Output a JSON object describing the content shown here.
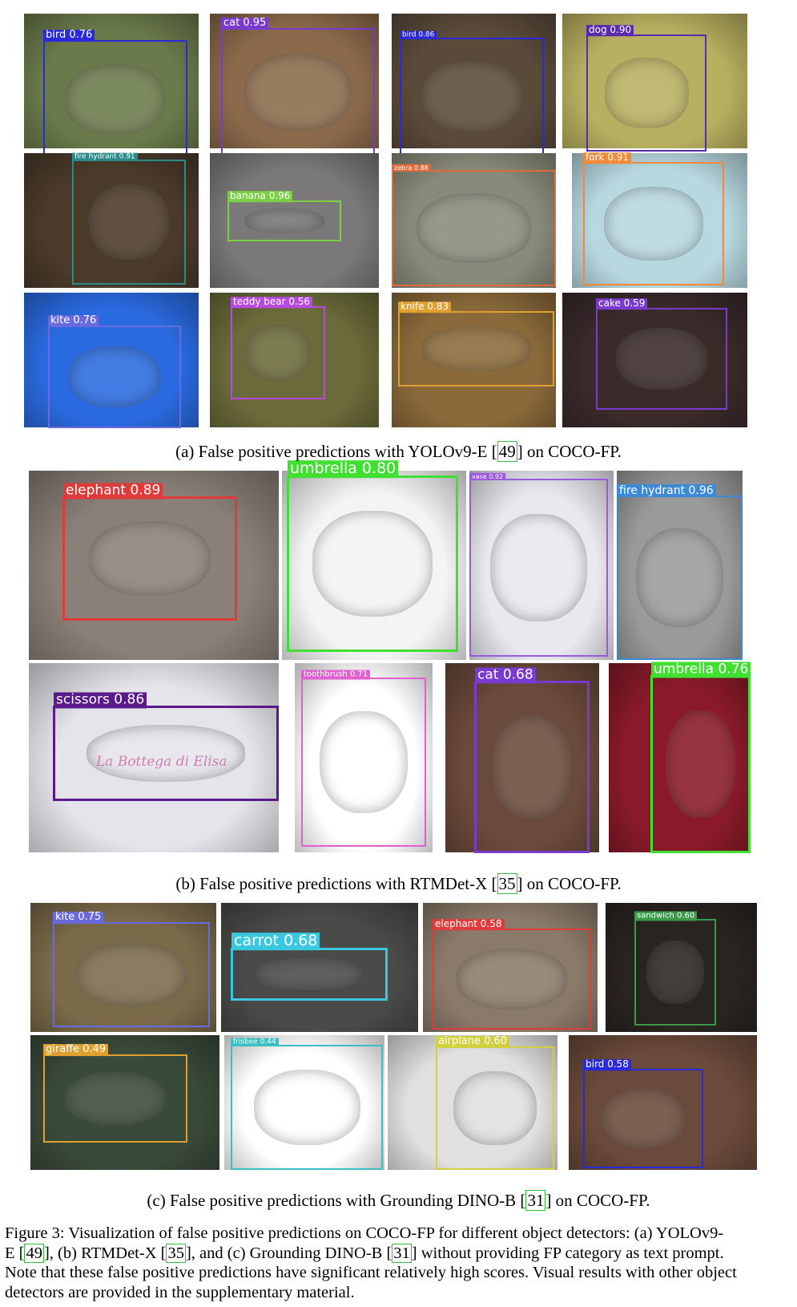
{
  "section_a": {
    "panels": [
      {
        "label": "bird 0.76",
        "color": "#2a2ad8",
        "bg": "#6a7a4a"
      },
      {
        "label": "cat 0.95",
        "color": "#7a3ad0",
        "bg": "#8a6a4a"
      },
      {
        "label": "bird 0.86",
        "color": "#2a2ad8",
        "bg": "#5a4a3a"
      },
      {
        "label": "dog 0.90",
        "color": "#5a2ab0",
        "bg": "#b8b060"
      },
      {
        "label": "fire hydrant 0.91",
        "color": "#2a8a8a",
        "bg": "#4a3a2a"
      },
      {
        "label": "banana 0.96",
        "color": "#7ad040",
        "bg": "#7a7878"
      },
      {
        "label": "zebra 0.88",
        "color": "#e06a3a",
        "bg": "#8a8a7a"
      },
      {
        "label": "fork 0.91",
        "color": "#f08a3a",
        "bg": "#b8d8e0"
      },
      {
        "label": "kite 0.76",
        "color": "#6a6ae0",
        "bg": "#2a6ae0"
      },
      {
        "label": "teddy bear 0.56",
        "color": "#b84ae0",
        "bg": "#6a6a3a"
      },
      {
        "label": "knife 0.83",
        "color": "#e0a030",
        "bg": "#8a6a3a"
      },
      {
        "label": "cake 0.59",
        "color": "#7a3ad0",
        "bg": "#3a2a2a"
      }
    ],
    "caption_pre": "(a) False positive predictions with YOLOv9-E [",
    "caption_ref": "49",
    "caption_post": "] on COCO-FP."
  },
  "section_b": {
    "panels": [
      {
        "label": "elephant 0.89",
        "color": "#e03a3a",
        "bg": "#8a8078"
      },
      {
        "label": "umbrella 0.80",
        "color": "#40e030",
        "bg": "#f4f4f4"
      },
      {
        "label": "vase 0.92",
        "color": "#9a5ae0",
        "bg": "#e8e8ee"
      },
      {
        "label": "fire hydrant 0.96",
        "color": "#3a8ad8",
        "bg": "#9a9a9a"
      },
      {
        "label": "scissors 0.86",
        "color": "#5a1a8a",
        "bg": "#e4e4ea"
      },
      {
        "label": "toothbrush 0.71",
        "color": "#e060d0",
        "bg": "#ffffff"
      },
      {
        "label": "cat 0.68",
        "color": "#7a3ad0",
        "bg": "#6a4a3a"
      },
      {
        "label": "umbrella 0.76",
        "color": "#40e030",
        "bg": "#8a1a2a"
      }
    ],
    "watermark": "La Bottega di Elisa",
    "caption_pre": "(b) False positive predictions with RTMDet-X [",
    "caption_ref": "35",
    "caption_post": "] on COCO-FP."
  },
  "section_c": {
    "panels": [
      {
        "label": "kite 0.75",
        "color": "#6a6ae0",
        "bg": "#7a6a4a"
      },
      {
        "label": "carrot 0.68",
        "color": "#3ac8e0",
        "bg": "#4a4a48"
      },
      {
        "label": "elephant 0.58",
        "color": "#e03a3a",
        "bg": "#8a7a6a"
      },
      {
        "label": "sandwich 0.60",
        "color": "#3a9a4a",
        "bg": "#2a2420"
      },
      {
        "label": "giraffe 0.49",
        "color": "#e0a030",
        "bg": "#3a4a3a"
      },
      {
        "label": "frisbee 0.44",
        "color": "#3ac0c0",
        "bg": "#ffffff"
      },
      {
        "label": "airplane 0.60",
        "color": "#d0d040",
        "bg": "#e0e0e0"
      },
      {
        "label": "bird 0.58",
        "color": "#2a2ad8",
        "bg": "#6a4a3a"
      }
    ],
    "caption_pre": "(c) False positive predictions with Grounding DINO-B [",
    "caption_ref": "31",
    "caption_post": "] on COCO-FP."
  },
  "figure_caption": {
    "line1": "Figure 3: Visualization of false positive predictions on COCO-FP for different object detectors: (a) YOLOv9-",
    "line2_a": "E [",
    "line2_ref1": "49",
    "line2_b": "], (b) RTMDet-X [",
    "line2_ref2": "35",
    "line2_c": "], and (c) Grounding DINO-B [",
    "line2_ref3": "31",
    "line2_d": "] without providing FP category as text prompt.",
    "line3": "Note that these false positive predictions have significant relatively high scores. Visual results with other object",
    "line4": "detectors are provided in the supplementary material."
  }
}
